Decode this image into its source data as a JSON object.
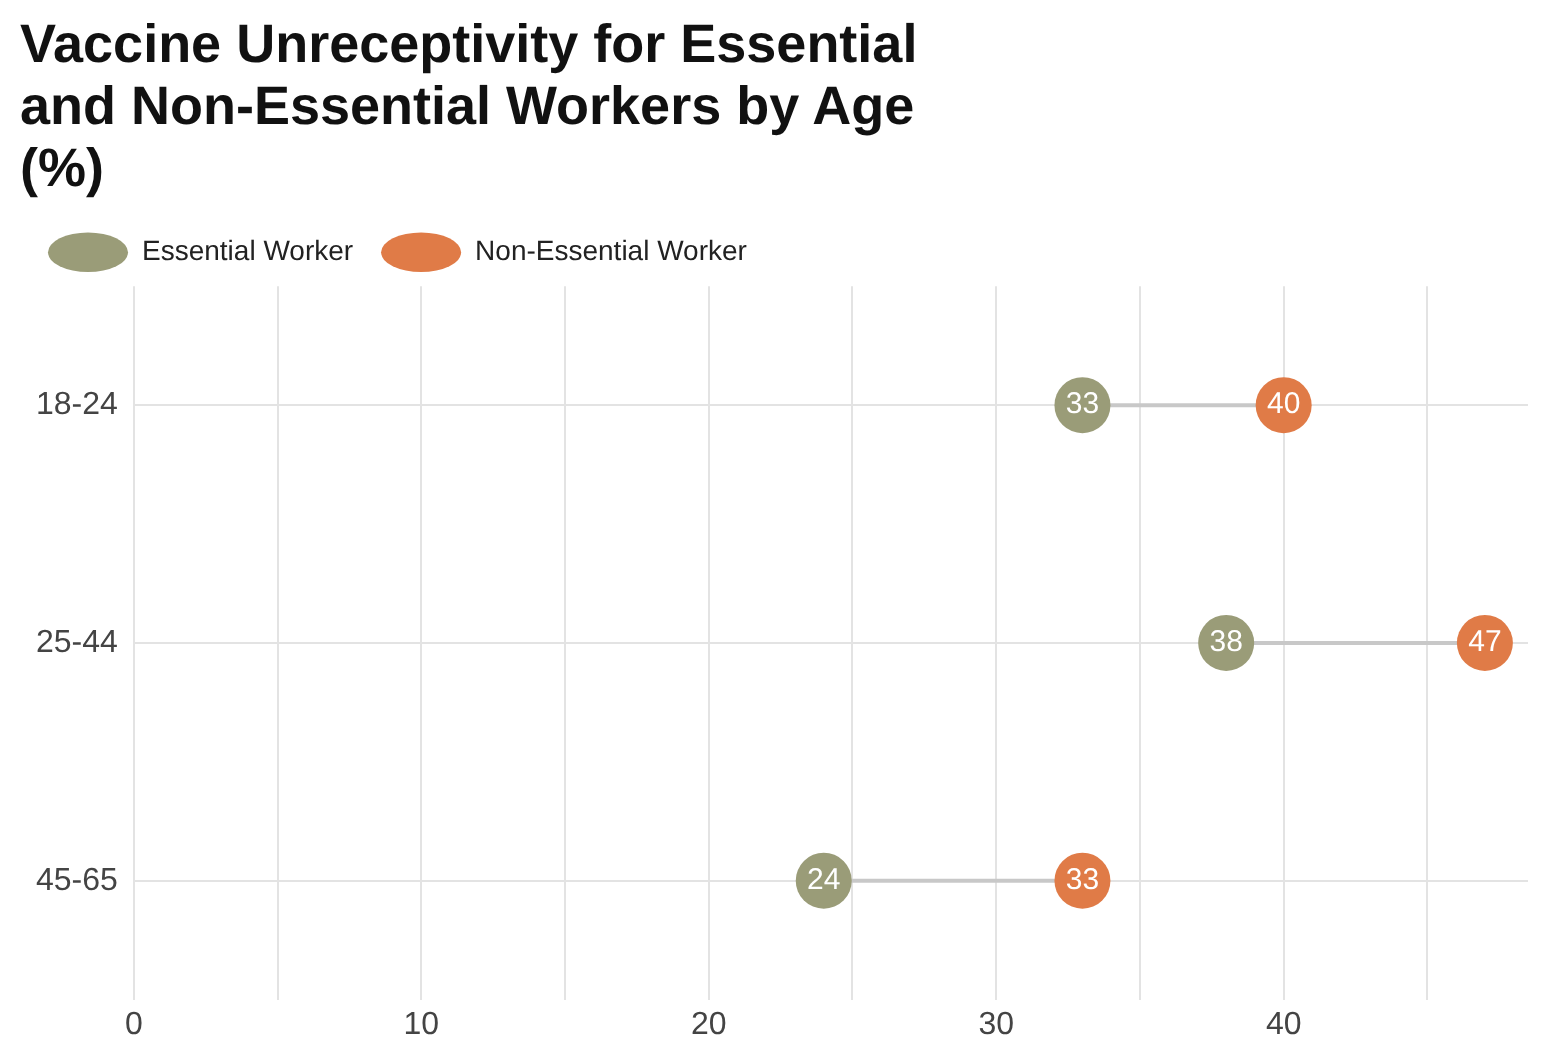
{
  "chart_data": {
    "type": "scatter",
    "title": "Vaccine Unreceptivity for Essential and Non-Essential Workers by Age (%)",
    "categories": [
      "18-24",
      "25-44",
      "45-65"
    ],
    "series": [
      {
        "name": "Essential Worker",
        "color": "#9a9c78",
        "values": [
          33,
          38,
          24
        ]
      },
      {
        "name": "Non-Essential Worker",
        "color": "#e07b47",
        "values": [
          40,
          47,
          33
        ]
      }
    ],
    "xlim": [
      0,
      48.5
    ],
    "xticks": [
      0,
      {
        "value": 5,
        "label": null
      },
      10,
      {
        "value": 15,
        "label": null
      },
      20,
      {
        "value": 25,
        "label": null
      },
      30,
      {
        "value": 35,
        "label": null
      },
      40,
      {
        "value": 45,
        "label": null
      }
    ],
    "orientation": "horizontal",
    "grid": true,
    "legend": "top left",
    "marker": "circle",
    "data_labels": true
  }
}
